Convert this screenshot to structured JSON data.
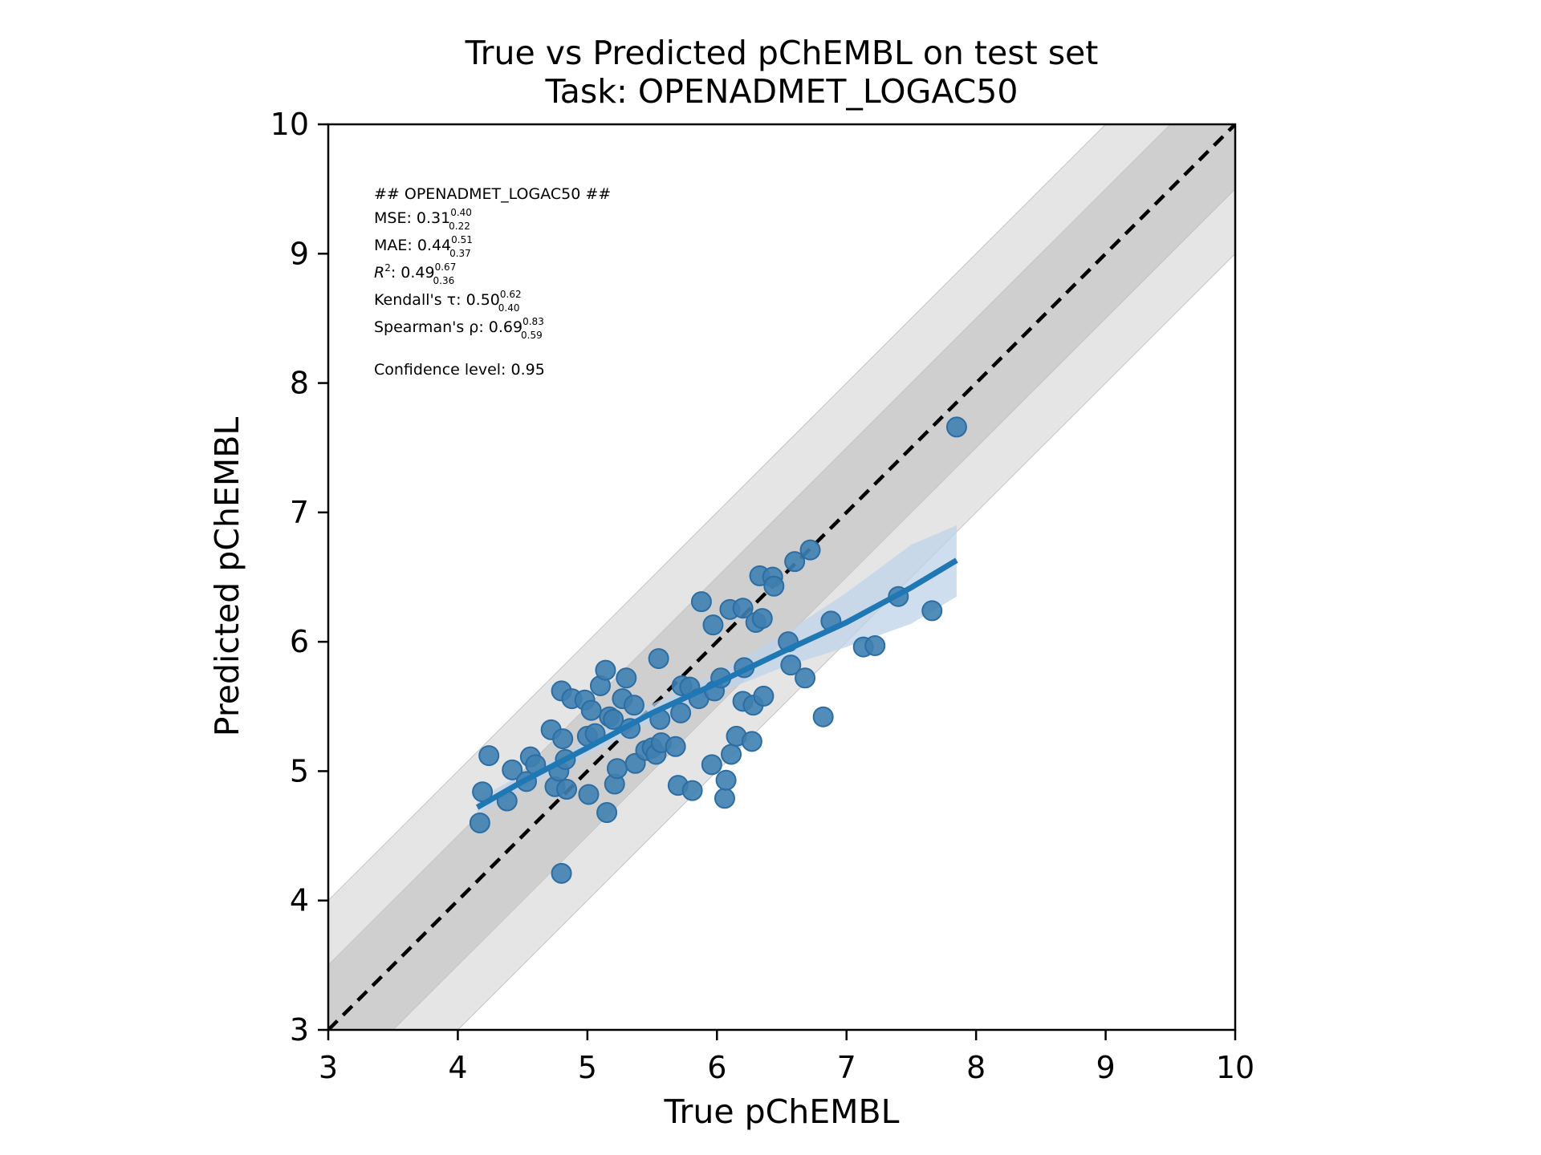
{
  "chart_data": {
    "type": "scatter",
    "title": "True vs Predicted pChEMBL on test set",
    "subtitle": "Task: OPENADMET_LOGAC50",
    "xlabel": "True pChEMBL",
    "ylabel": "Predicted pChEMBL",
    "xlim": [
      3,
      10
    ],
    "ylim": [
      3,
      10
    ],
    "xticks": [
      "3",
      "4",
      "5",
      "6",
      "7",
      "8",
      "9",
      "10"
    ],
    "yticks": [
      "3",
      "4",
      "5",
      "6",
      "7",
      "8",
      "9",
      "10"
    ],
    "grid": false,
    "identity_line": true,
    "bands": [
      {
        "half_width": 0.5,
        "color": "#cfcfcf"
      },
      {
        "half_width": 1.0,
        "color": "#e5e5e5"
      }
    ],
    "colors": {
      "points": "#3f7fb0",
      "points_edge": "#2c6da3",
      "fit_line": "#1f77b4",
      "ci_band": "#bed3e8",
      "identity": "#000000"
    },
    "annotation": {
      "header": "## OPENADMET_LOGAC50 ##",
      "metrics": [
        {
          "label": "MSE: ",
          "value": "0.31",
          "upper": "0.40",
          "lower": "0.22"
        },
        {
          "label": "MAE: ",
          "value": "0.44",
          "upper": "0.51",
          "lower": "0.37"
        },
        {
          "label": "R",
          "sup": "2",
          "label_tail": ": ",
          "value": "0.49",
          "upper": "0.67",
          "lower": "0.36"
        },
        {
          "label": "Kendall's τ: ",
          "value": "0.50",
          "upper": "0.62",
          "lower": "0.40"
        },
        {
          "label": "Spearman's ρ: ",
          "value": "0.69",
          "upper": "0.83",
          "lower": "0.59"
        }
      ],
      "confidence": "Confidence level: 0.95"
    },
    "fit": {
      "x": [
        4.15,
        4.5,
        5.0,
        5.5,
        6.0,
        6.5,
        7.0,
        7.5,
        7.85
      ],
      "y": [
        4.72,
        4.92,
        5.18,
        5.45,
        5.68,
        5.92,
        6.15,
        6.42,
        6.63
      ],
      "ci_upper": [
        4.78,
        4.98,
        5.24,
        5.52,
        5.76,
        6.05,
        6.38,
        6.75,
        6.9
      ],
      "ci_lower": [
        4.66,
        4.86,
        5.12,
        5.38,
        5.6,
        5.8,
        5.96,
        6.14,
        6.35
      ]
    },
    "points": [
      [
        4.17,
        4.6
      ],
      [
        4.19,
        4.84
      ],
      [
        4.24,
        5.12
      ],
      [
        4.38,
        4.77
      ],
      [
        4.42,
        5.01
      ],
      [
        4.53,
        4.92
      ],
      [
        4.56,
        5.11
      ],
      [
        4.6,
        5.05
      ],
      [
        4.72,
        5.32
      ],
      [
        4.75,
        4.88
      ],
      [
        4.78,
        5.0
      ],
      [
        4.8,
        5.62
      ],
      [
        4.81,
        5.25
      ],
      [
        4.83,
        5.09
      ],
      [
        4.84,
        4.86
      ],
      [
        4.8,
        4.21
      ],
      [
        4.88,
        5.56
      ],
      [
        4.98,
        5.55
      ],
      [
        5.0,
        5.27
      ],
      [
        5.01,
        4.82
      ],
      [
        5.03,
        5.47
      ],
      [
        5.06,
        5.29
      ],
      [
        5.1,
        5.66
      ],
      [
        5.14,
        5.78
      ],
      [
        5.15,
        4.68
      ],
      [
        5.17,
        5.42
      ],
      [
        5.2,
        5.4
      ],
      [
        5.21,
        4.9
      ],
      [
        5.23,
        5.02
      ],
      [
        5.27,
        5.56
      ],
      [
        5.3,
        5.72
      ],
      [
        5.33,
        5.33
      ],
      [
        5.36,
        5.51
      ],
      [
        5.37,
        5.06
      ],
      [
        5.45,
        5.16
      ],
      [
        5.5,
        5.18
      ],
      [
        5.53,
        5.13
      ],
      [
        5.55,
        5.87
      ],
      [
        5.56,
        5.4
      ],
      [
        5.57,
        5.22
      ],
      [
        5.68,
        5.19
      ],
      [
        5.7,
        4.89
      ],
      [
        5.72,
        5.45
      ],
      [
        5.73,
        5.66
      ],
      [
        5.79,
        5.65
      ],
      [
        5.81,
        4.85
      ],
      [
        5.86,
        5.56
      ],
      [
        5.88,
        6.31
      ],
      [
        5.96,
        5.05
      ],
      [
        5.97,
        6.13
      ],
      [
        5.98,
        5.62
      ],
      [
        6.03,
        5.72
      ],
      [
        6.06,
        4.79
      ],
      [
        6.07,
        4.93
      ],
      [
        6.1,
        6.25
      ],
      [
        6.11,
        5.13
      ],
      [
        6.15,
        5.27
      ],
      [
        6.2,
        6.26
      ],
      [
        6.2,
        5.54
      ],
      [
        6.21,
        5.8
      ],
      [
        6.27,
        5.23
      ],
      [
        6.28,
        5.51
      ],
      [
        6.3,
        6.15
      ],
      [
        6.33,
        6.51
      ],
      [
        6.35,
        6.18
      ],
      [
        6.36,
        5.58
      ],
      [
        6.43,
        6.5
      ],
      [
        6.44,
        6.43
      ],
      [
        6.55,
        6.0
      ],
      [
        6.57,
        5.82
      ],
      [
        6.6,
        6.62
      ],
      [
        6.68,
        5.72
      ],
      [
        6.72,
        6.71
      ],
      [
        6.82,
        5.42
      ],
      [
        6.88,
        6.16
      ],
      [
        7.13,
        5.96
      ],
      [
        7.22,
        5.97
      ],
      [
        7.4,
        6.35
      ],
      [
        7.66,
        6.24
      ],
      [
        7.85,
        7.66
      ]
    ]
  }
}
